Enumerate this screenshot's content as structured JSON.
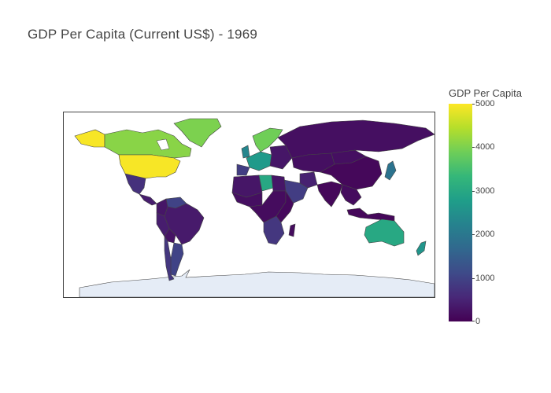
{
  "title": "GDP Per Capita (Current US$) - 1969",
  "colorbar": {
    "title": "GDP Per Capita",
    "min": 0,
    "max": 5000,
    "ticks": [
      "0",
      "1000",
      "2000",
      "3000",
      "4000",
      "5000"
    ],
    "colors": [
      "#440154",
      "#482878",
      "#3e4a89",
      "#31688e",
      "#26828e",
      "#1f9e89",
      "#35b779",
      "#6ece58",
      "#b5de2b",
      "#fde725"
    ]
  },
  "map": {
    "land_no_data": "#e5ecf6",
    "border_color": "#444444",
    "regions": [
      {
        "name": "United States",
        "value": 4950
      },
      {
        "name": "Canada",
        "value": 4100
      },
      {
        "name": "Greenland",
        "value": 4000
      },
      {
        "name": "Alaska",
        "value": 4950
      },
      {
        "name": "Mexico",
        "value": 700
      },
      {
        "name": "Central America",
        "value": 400
      },
      {
        "name": "Venezuela",
        "value": 1000
      },
      {
        "name": "Colombia",
        "value": 300
      },
      {
        "name": "Brazil",
        "value": 350
      },
      {
        "name": "Peru",
        "value": 400
      },
      {
        "name": "Bolivia",
        "value": 250
      },
      {
        "name": "Argentina",
        "value": 1000
      },
      {
        "name": "Chile",
        "value": 800
      },
      {
        "name": "Scandinavia",
        "value": 3900
      },
      {
        "name": "Western Europe",
        "value": 2700
      },
      {
        "name": "UK",
        "value": 2300
      },
      {
        "name": "Iberia",
        "value": 900
      },
      {
        "name": "Eastern Europe",
        "value": 300
      },
      {
        "name": "Russia",
        "value": 200
      },
      {
        "name": "Libya",
        "value": 3000
      },
      {
        "name": "North Africa",
        "value": 300
      },
      {
        "name": "West Africa",
        "value": 200
      },
      {
        "name": "Central Africa",
        "value": 150
      },
      {
        "name": "East Africa",
        "value": 120
      },
      {
        "name": "Southern Africa",
        "value": 800
      },
      {
        "name": "Arabian Peninsula",
        "value": 900
      },
      {
        "name": "Iran",
        "value": 450
      },
      {
        "name": "Central Asia",
        "value": 200
      },
      {
        "name": "India",
        "value": 100
      },
      {
        "name": "China",
        "value": 100
      },
      {
        "name": "Mongolia",
        "value": 200
      },
      {
        "name": "Southeast Asia",
        "value": 150
      },
      {
        "name": "Japan",
        "value": 1900
      },
      {
        "name": "Indonesia",
        "value": 100
      },
      {
        "name": "Australia",
        "value": 3000
      },
      {
        "name": "New Zealand",
        "value": 2600
      },
      {
        "name": "Madagascar",
        "value": 150
      }
    ]
  }
}
